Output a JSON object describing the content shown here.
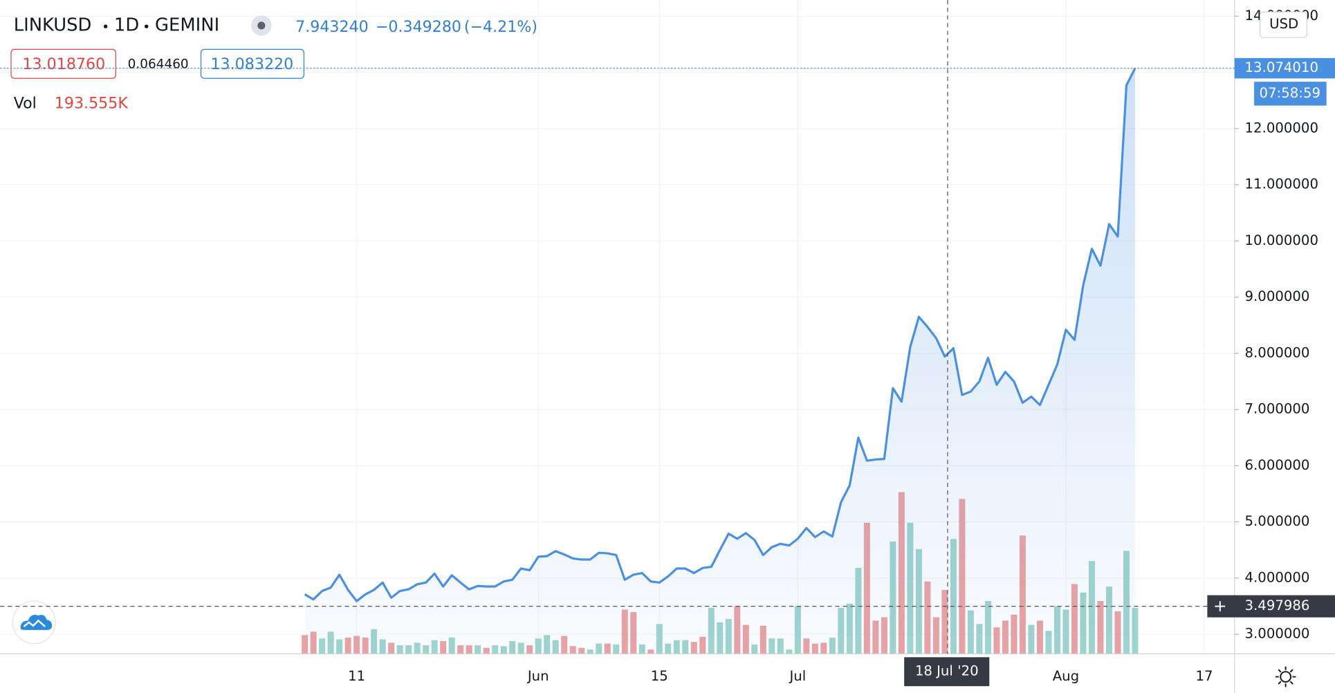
{
  "header": {
    "symbol": "LINKUSD",
    "interval": "1D",
    "exchange": "GEMINI",
    "readout": {
      "price": "7.943240",
      "change": "−0.349280",
      "change_pct": "(−4.21%)"
    },
    "indicator": {
      "left": "13.018760",
      "middle": "0.064460",
      "right": "13.083220"
    }
  },
  "currency_button": "USD",
  "countdown": "07:58:59",
  "crosshair": {
    "x_label": "18 Jul '20",
    "y_value": 3.497986,
    "y_label": "3.497986"
  },
  "chart_data": {
    "type": "line",
    "color": "#4a90e2",
    "grid": true,
    "categories": [
      null,
      null,
      null,
      null,
      null,
      null,
      "11",
      null,
      null,
      null,
      null,
      null,
      null,
      null,
      null,
      null,
      null,
      null,
      null,
      null,
      null,
      null,
      null,
      null,
      null,
      null,
      null,
      "Jun",
      null,
      null,
      null,
      null,
      null,
      null,
      null,
      null,
      null,
      null,
      null,
      null,
      null,
      "15",
      null,
      null,
      null,
      null,
      null,
      null,
      null,
      null,
      null,
      null,
      null,
      null,
      null,
      null,
      null,
      "Jul",
      null,
      null,
      null,
      null,
      null,
      null,
      null,
      null,
      null,
      null,
      null,
      null,
      null,
      null,
      null,
      null,
      null,
      null,
      null,
      null,
      null,
      null,
      null,
      null,
      null,
      null,
      null,
      null,
      null,
      null,
      "Aug",
      null,
      null,
      null,
      null,
      null,
      null,
      null,
      null,
      null,
      null,
      null,
      null,
      null,
      null,
      null,
      "17",
      null,
      null,
      null
    ],
    "values": [
      3.71,
      3.62,
      3.77,
      3.83,
      4.06,
      3.79,
      3.59,
      3.71,
      3.79,
      3.92,
      3.65,
      3.77,
      3.8,
      3.89,
      3.92,
      4.08,
      3.85,
      4.05,
      3.92,
      3.8,
      3.86,
      3.85,
      3.85,
      3.94,
      3.97,
      4.17,
      4.14,
      4.38,
      4.39,
      4.48,
      4.42,
      4.35,
      4.33,
      4.33,
      4.45,
      4.44,
      4.41,
      3.97,
      4.06,
      4.09,
      3.94,
      3.92,
      4.03,
      4.17,
      4.17,
      4.09,
      4.18,
      4.2,
      4.5,
      4.79,
      4.7,
      4.8,
      4.68,
      4.41,
      4.55,
      4.61,
      4.58,
      4.7,
      4.89,
      4.73,
      4.83,
      4.74,
      5.35,
      5.65,
      6.5,
      6.09,
      6.11,
      6.12,
      7.38,
      7.14,
      8.11,
      8.65,
      8.47,
      8.27,
      7.94324,
      8.09,
      7.26,
      7.32,
      7.5,
      7.92,
      7.44,
      7.67,
      7.5,
      7.12,
      7.23,
      7.08,
      7.44,
      7.8,
      8.42,
      8.24,
      9.21,
      9.86,
      9.56,
      10.3,
      10.08,
      12.77,
      13.07401,
      null,
      null,
      null,
      null,
      null,
      null,
      null,
      null,
      null,
      null,
      null
    ],
    "last_price": {
      "value": 13.07401,
      "label": "13.074010"
    },
    "ylim": [
      2.652,
      14.288
    ],
    "yticks": [
      {
        "value": 3,
        "label": "3.000000"
      },
      {
        "value": 4,
        "label": "4.000000"
      },
      {
        "value": 5,
        "label": "5.000000"
      },
      {
        "value": 6,
        "label": "6.000000"
      },
      {
        "value": 7,
        "label": "7.000000"
      },
      {
        "value": 8,
        "label": "8.000000"
      },
      {
        "value": 9,
        "label": "9.000000"
      },
      {
        "value": 10,
        "label": "10.000000"
      },
      {
        "value": 11,
        "label": "11.000000"
      },
      {
        "value": 12,
        "label": "12.000000"
      },
      {
        "value": 13,
        "label": "13.000000"
      },
      {
        "value": 14,
        "label": "14.000000"
      }
    ],
    "volume": {
      "name": "Vol",
      "ylim": [
        0,
        1982000
      ],
      "readout": {
        "value": 193555,
        "label": "193.555K"
      },
      "values": [
        56800,
        67100,
        46400,
        67100,
        43900,
        49000,
        54200,
        49000,
        74800,
        43900,
        33500,
        25800,
        25800,
        33500,
        25800,
        41300,
        38700,
        49000,
        25800,
        25800,
        25800,
        18100,
        25800,
        23200,
        38700,
        33500,
        25800,
        46400,
        56800,
        41300,
        54200,
        23200,
        18100,
        12900,
        31000,
        31000,
        28400,
        134200,
        126400,
        28400,
        12900,
        90300,
        31000,
        41300,
        41300,
        36100,
        51600,
        139300,
        95500,
        105800,
        144500,
        87700,
        28400,
        85200,
        46400,
        46400,
        12900,
        144500,
        46400,
        31000,
        33500,
        49000,
        139300,
        152200,
        260600,
        397300,
        100600,
        110900,
        340600,
        490200,
        397300,
        317300,
        219300,
        110900,
        193555,
        348300,
        469600,
        131600,
        90300,
        160000,
        80000,
        100600,
        118700,
        358600,
        87700,
        100600,
        69700,
        144500,
        134200,
        211600,
        185800,
        281200,
        160000,
        203800,
        129000,
        312200,
        139300,
        null,
        null,
        null,
        null,
        null,
        null,
        null,
        null,
        null,
        null,
        null
      ],
      "colors": [
        "#eba3a3",
        "#eba3a3",
        "#a0d4ce",
        "#a0d4ce",
        "#a0d4ce",
        "#eba3a3",
        "#eba3a3",
        "#eba3a3",
        "#a0d4ce",
        "#a0d4ce",
        "#eba3a3",
        "#a0d4ce",
        "#a0d4ce",
        "#a0d4ce",
        "#a0d4ce",
        "#a0d4ce",
        "#eba3a3",
        "#a0d4ce",
        "#eba3a3",
        "#eba3a3",
        "#a0d4ce",
        "#eba3a3",
        "#a0d4ce",
        "#a0d4ce",
        "#a0d4ce",
        "#a0d4ce",
        "#eba3a3",
        "#a0d4ce",
        "#a0d4ce",
        "#a0d4ce",
        "#eba3a3",
        "#eba3a3",
        "#eba3a3",
        "#a0d4ce",
        "#a0d4ce",
        "#eba3a3",
        "#a0d4ce",
        "#eba3a3",
        "#eba3a3",
        "#a0d4ce",
        "#eba3a3",
        "#a0d4ce",
        "#a0d4ce",
        "#a0d4ce",
        "#a0d4ce",
        "#eba3a3",
        "#eba3a3",
        "#a0d4ce",
        "#a0d4ce",
        "#a0d4ce",
        "#eba3a3",
        "#eba3a3",
        "#a0d4ce",
        "#eba3a3",
        "#a0d4ce",
        "#a0d4ce",
        "#a0d4ce",
        "#a0d4ce",
        "#eba3a3",
        "#eba3a3",
        "#eba3a3",
        "#a0d4ce",
        "#a0d4ce",
        "#a0d4ce",
        "#a0d4ce",
        "#eba3a3",
        "#eba3a3",
        "#eba3a3",
        "#a0d4ce",
        "#eba3a3",
        "#a0d4ce",
        "#a0d4ce",
        "#eba3a3",
        "#eba3a3",
        "#eba3a3",
        "#a0d4ce",
        "#eba3a3",
        "#a0d4ce",
        "#a0d4ce",
        "#a0d4ce",
        "#eba3a3",
        "#eba3a3",
        "#eba3a3",
        "#eba3a3",
        "#a0d4ce",
        "#eba3a3",
        "#a0d4ce",
        "#a0d4ce",
        "#a0d4ce",
        "#eba3a3",
        "#a0d4ce",
        "#a0d4ce",
        "#eba3a3",
        "#a0d4ce",
        "#eba3a3",
        "#a0d4ce",
        "#a0d4ce",
        null,
        null,
        null,
        null,
        null,
        null,
        null,
        null,
        null,
        null,
        null
      ]
    }
  }
}
